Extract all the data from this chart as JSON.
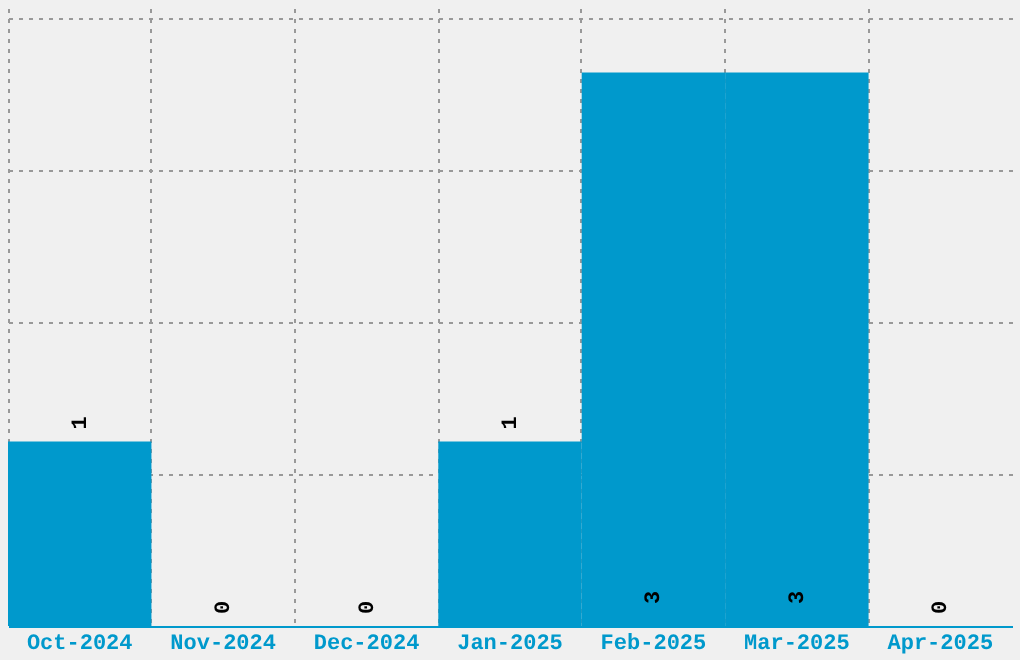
{
  "chart_data": {
    "type": "bar",
    "categories": [
      "Oct-2024",
      "Nov-2024",
      "Dec-2024",
      "Jan-2025",
      "Feb-2025",
      "Mar-2025",
      "Apr-2025"
    ],
    "values": [
      1,
      0,
      0,
      1,
      3,
      3,
      0
    ],
    "color": "#0099cc",
    "ylim": [
      0,
      3.35
    ],
    "yticks": [
      {
        "value": 0.825,
        "label": null
      },
      {
        "value": 1.65,
        "label": null
      },
      {
        "value": 2.475,
        "label": null
      },
      {
        "value": 3.3,
        "label": null
      }
    ],
    "grid": true,
    "data_labels": true,
    "tick_labels": "x"
  }
}
